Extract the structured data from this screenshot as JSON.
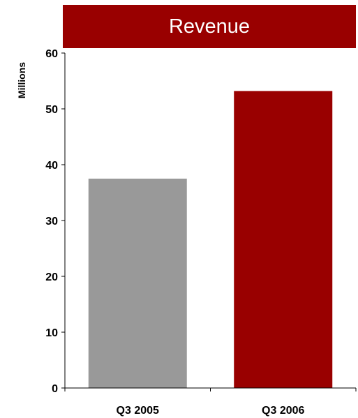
{
  "chart_data": {
    "type": "bar",
    "title": "Revenue",
    "ylabel": "Millions",
    "xlabel": "",
    "categories": [
      "Q3 2005",
      "Q3 2006"
    ],
    "values": [
      37.5,
      53.2
    ],
    "bar_colors": [
      "#999999",
      "#990000"
    ],
    "ylim": [
      0,
      60
    ],
    "yticks": [
      0,
      10,
      20,
      30,
      40,
      50,
      60
    ],
    "ytick_labels": [
      "0",
      "10",
      "20",
      "30",
      "40",
      "50",
      "60"
    ],
    "grid": false,
    "legend": "none"
  },
  "colors": {
    "title_bg": "#990000",
    "title_text": "#ffffff"
  }
}
